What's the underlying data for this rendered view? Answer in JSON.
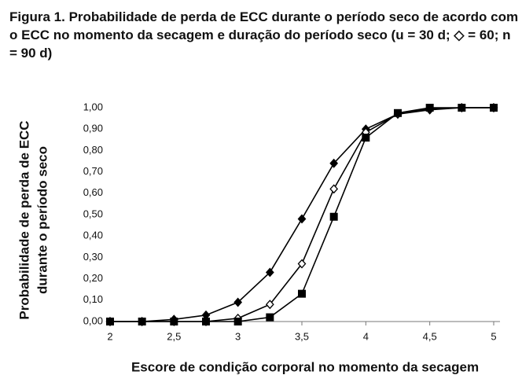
{
  "chart_data": {
    "type": "line",
    "title": "Figura 1. Probabilidade de perda de ECC durante o período seco de acordo com o ECC no momento da secagem e duração do período seco (u = 30 d; ◇ = 60; n = 90 d)",
    "xlabel": "Escore de condição corporal no momento da secagem",
    "ylabel": [
      "Probabilidade de perda de ECC",
      "durante o período seco"
    ],
    "x": [
      2,
      2.25,
      2.5,
      2.75,
      3,
      3.25,
      3.5,
      3.75,
      4,
      4.25,
      4.5,
      4.75,
      5
    ],
    "series": [
      {
        "color": "#000000",
        "marker": "diamond",
        "values": [
          0,
          0,
          0.01,
          0.03,
          0.09,
          0.23,
          0.48,
          0.74,
          0.9,
          0.97,
          0.99,
          1.0,
          1.0
        ]
      },
      {
        "color": "#000000",
        "marker": "open-diamond",
        "values": [
          0,
          0,
          0,
          0,
          0.015,
          0.08,
          0.27,
          0.62,
          0.885,
          0.97,
          0.995,
          1.0,
          1.0
        ]
      },
      {
        "color": "#000000",
        "marker": "square",
        "values": [
          0,
          0,
          0,
          0,
          0,
          0.02,
          0.13,
          0.49,
          0.86,
          0.975,
          1.0,
          1.0,
          1.0
        ]
      }
    ],
    "xlim": [
      2,
      5
    ],
    "xticks": [
      2,
      {
        "value": 2.5,
        "label": "2,5"
      },
      3,
      {
        "value": 3.5,
        "label": "3,5"
      },
      4,
      {
        "value": 4.5,
        "label": "4,5"
      },
      5
    ],
    "ylim": [
      0,
      1
    ],
    "yticks": [
      {
        "value": 0,
        "label": "0,00"
      },
      {
        "value": 0.1,
        "label": "0,10"
      },
      {
        "value": 0.2,
        "label": "0,20"
      },
      {
        "value": 0.3,
        "label": "0,30"
      },
      {
        "value": 0.4,
        "label": "0,40"
      },
      {
        "value": 0.5,
        "label": "0,50"
      },
      {
        "value": 0.6,
        "label": "0,60"
      },
      {
        "value": 0.7,
        "label": "0,70"
      },
      {
        "value": 0.8,
        "label": "0,80"
      },
      {
        "value": 0.9,
        "label": "0,90"
      },
      {
        "value": 1,
        "label": "1,00"
      }
    ],
    "grid": false
  }
}
